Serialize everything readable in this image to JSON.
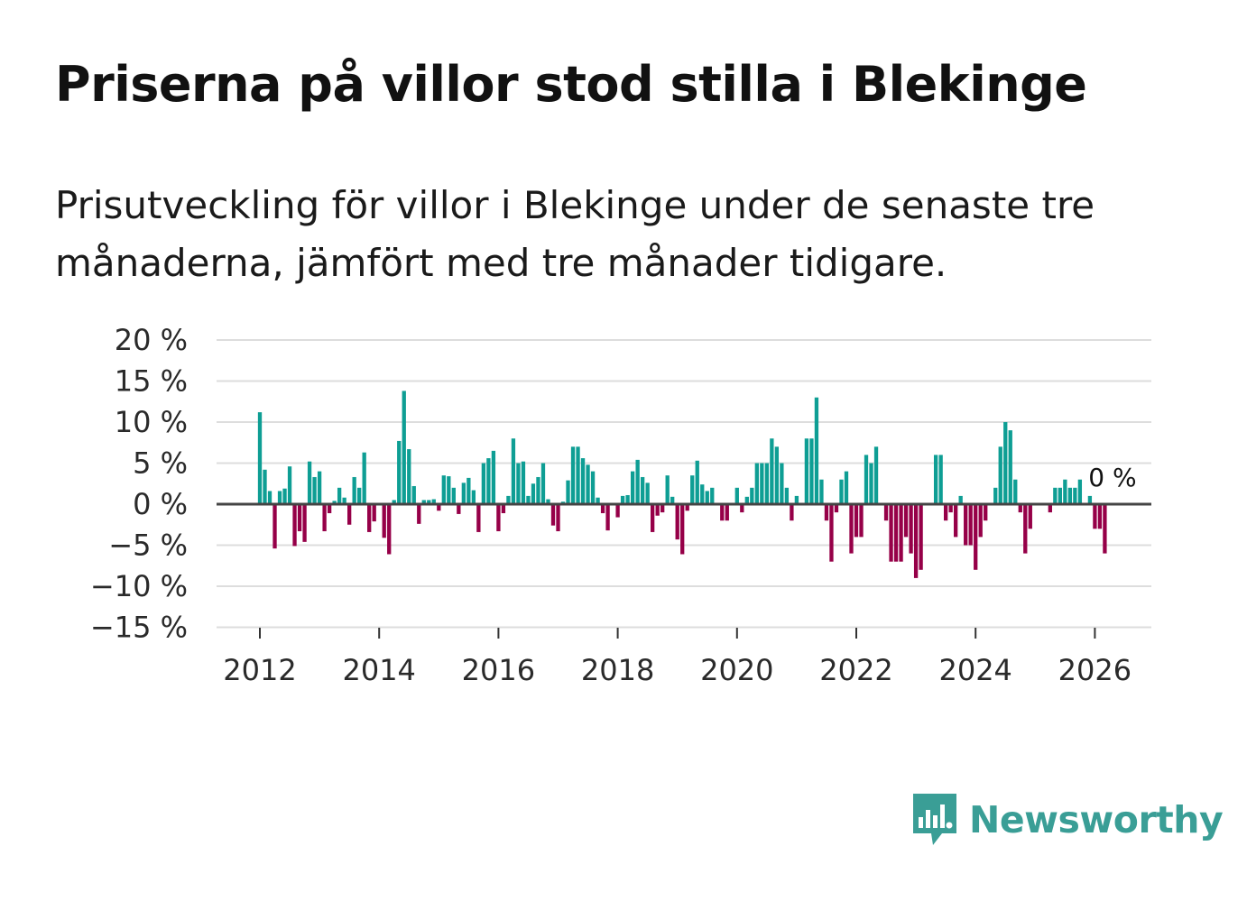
{
  "title": "Priserna på villor stod stilla i Blekinge",
  "subtitle": "Prisutveckling för villor i Blekinge under de senaste tre månaderna, jämfört med tre månader tidigare.",
  "brand": {
    "name": "Newsworthy",
    "icon": "newsworthy-chart-bubble-icon"
  },
  "colors": {
    "positive": "#0e9e94",
    "negative": "#960048",
    "grid": "#dddddd",
    "zero_line": "#444444",
    "brand": "#3a9e96"
  },
  "chart_data": {
    "type": "bar",
    "title": "Priserna på villor stod stilla i Blekinge",
    "xlabel": "",
    "ylabel": "",
    "ylim": [
      -15,
      20
    ],
    "y_ticks": [
      20,
      15,
      10,
      5,
      0,
      -5,
      -10,
      -15
    ],
    "y_tick_labels": [
      "20 %",
      "15 %",
      "10 %",
      "5 %",
      "0 %",
      "−5 %",
      "−10 %",
      "−15 %"
    ],
    "x_ticks": [
      2012,
      2014,
      2016,
      2018,
      2020,
      2022,
      2024,
      2026
    ],
    "x_tick_labels": [
      "2012",
      "2014",
      "2016",
      "2018",
      "2020",
      "2022",
      "2024",
      "2026"
    ],
    "start": "2012-01",
    "frequency": "monthly",
    "values": [
      11.2,
      4.2,
      1.6,
      -5.4,
      1.6,
      1.9,
      4.6,
      -5.1,
      -3.3,
      -4.6,
      5.2,
      3.3,
      4.0,
      -3.3,
      -1.1,
      0.4,
      2.0,
      0.8,
      -2.5,
      3.3,
      2.0,
      6.3,
      -3.4,
      -2.1,
      0.0,
      -4.1,
      -6.1,
      0.5,
      7.7,
      13.8,
      6.7,
      2.2,
      -2.4,
      0.5,
      0.5,
      0.6,
      -0.8,
      3.5,
      3.4,
      2.0,
      -1.2,
      2.6,
      3.2,
      1.7,
      -3.4,
      5.0,
      5.6,
      6.5,
      -3.3,
      -1.1,
      1.0,
      8.0,
      5.0,
      5.2,
      1.0,
      2.5,
      3.3,
      5.0,
      0.6,
      -2.6,
      -3.3,
      0.3,
      2.9,
      7.0,
      7.0,
      5.6,
      4.8,
      4.0,
      0.8,
      -1.1,
      -3.2,
      -0.1,
      -1.6,
      1.0,
      1.1,
      4.0,
      5.4,
      3.3,
      2.6,
      -3.4,
      -1.4,
      -1.0,
      3.5,
      0.9,
      -4.3,
      -6.1,
      -0.8,
      3.5,
      5.3,
      2.4,
      1.6,
      2.0,
      -0.1,
      -2.0,
      -2.0,
      -0.1,
      2.0,
      -1.0,
      0.9,
      2.0,
      5.0,
      5.0,
      5.0,
      8.0,
      7.0,
      5.0,
      2.0,
      -2.0,
      1.0,
      -0.1,
      8.0,
      8.0,
      13.0,
      3.0,
      -2.0,
      -7.0,
      -1.0,
      3.0,
      4.0,
      -6.0,
      -4.0,
      -4.0,
      6.0,
      5.0,
      7.0,
      -0.1,
      -2.0,
      -7.0,
      -7.0,
      -7.0,
      -4.0,
      -6.0,
      -9.0,
      -8.0,
      -0.1,
      -0.1,
      6.0,
      6.0,
      -2.0,
      -1.0,
      -4.0,
      1.0,
      -5.0,
      -5.0,
      -8.0,
      -4.0,
      -2.0,
      -0.1,
      2.0,
      7.0,
      10.0,
      9.0,
      3.0,
      -1.0,
      -6.0,
      -3.0,
      -0.1,
      -0.1,
      -0.1,
      -1.0,
      2.0,
      2.0,
      3.0,
      2.0,
      2.0,
      3.0,
      -0.1,
      1.0,
      -3.0,
      -3.0,
      -6.0,
      0.0
    ],
    "last_value_label": "0 %"
  }
}
